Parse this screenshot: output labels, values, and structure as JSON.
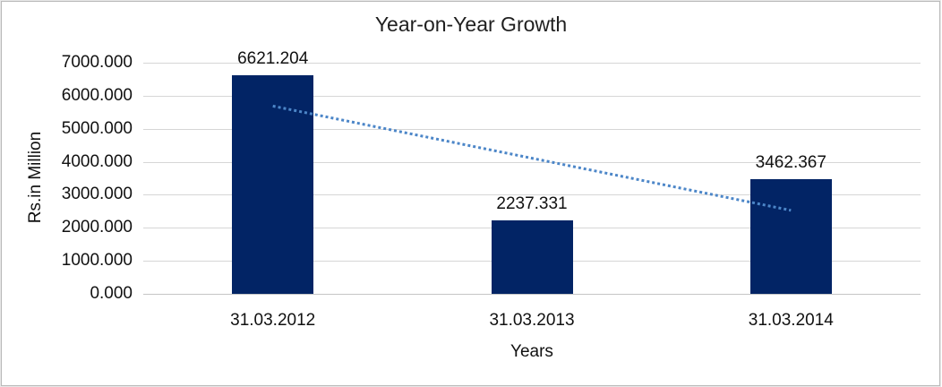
{
  "window": {
    "background": "#ffffff",
    "frame_border_color": "#b9b9b9"
  },
  "chart_data": {
    "type": "bar",
    "title": "Year-on-Year Growth",
    "xlabel": "Years",
    "ylabel": "Rs.in Million",
    "categories": [
      "31.03.2012",
      "31.03.2013",
      "31.03.2014"
    ],
    "values": [
      6621.204,
      2237.331,
      3462.367
    ],
    "value_labels": [
      "6621.204",
      "2237.331",
      "3462.367"
    ],
    "y_ticks": [
      "7000.000",
      "6000.000",
      "5000.000",
      "4000.000",
      "3000.000",
      "2000.000",
      "1000.000",
      "0.000"
    ],
    "ylim": [
      0,
      7000
    ],
    "grid": "horizontal",
    "legend_position": "none",
    "bar_color": "#022465",
    "gridline_color": "#d6d6d6",
    "trendline": {
      "type": "linear",
      "style": "dotted",
      "color": "#4c86c8",
      "endpoint_values": [
        5686,
        2528
      ],
      "endpoint_categories": [
        "31.03.2012",
        "31.03.2014"
      ]
    }
  }
}
